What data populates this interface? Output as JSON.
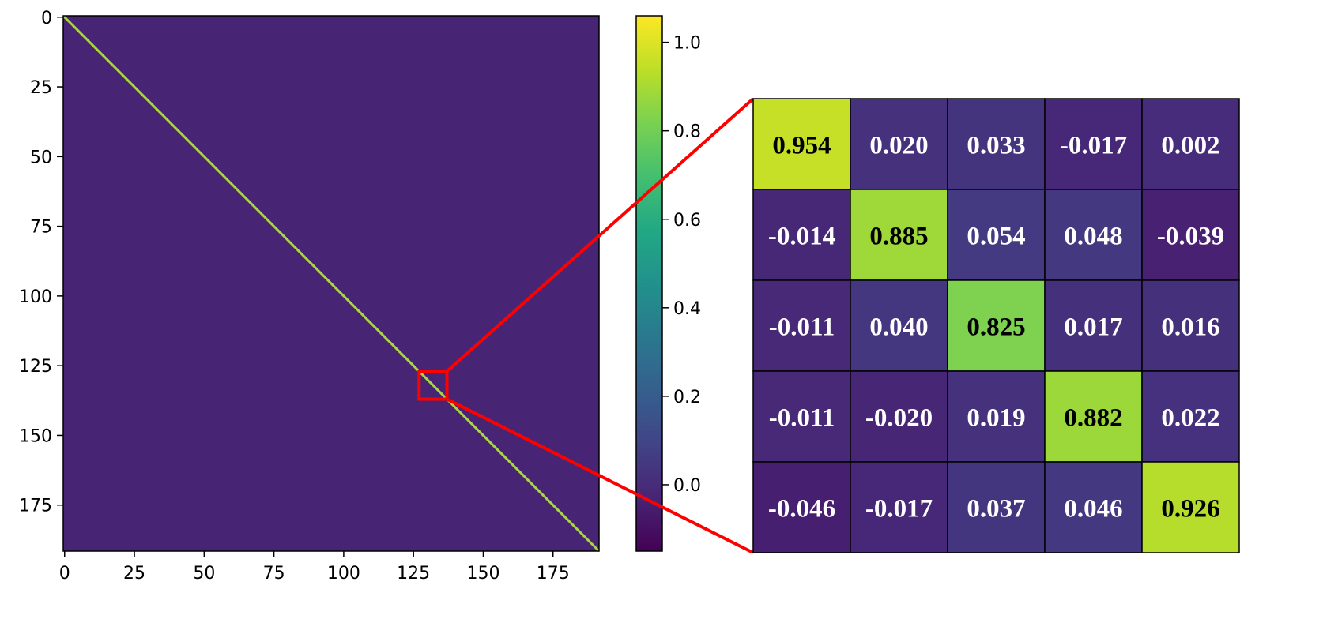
{
  "chart_data": [
    {
      "type": "heatmap",
      "title": "",
      "xlabel": "",
      "ylabel": "",
      "matrix_size": 192,
      "diagonal_value": 0.9,
      "off_diagonal_value": -0.03,
      "x_ticks": [
        0,
        25,
        50,
        75,
        100,
        125,
        150,
        175
      ],
      "y_ticks": [
        0,
        25,
        50,
        75,
        100,
        125,
        150,
        175
      ],
      "highlight_region": {
        "x_range": [
          127.5,
          137.5
        ],
        "y_range": [
          127.5,
          137.5
        ],
        "color": "#ff0000"
      },
      "colorscale": "viridis",
      "colorbar": {
        "range": [
          -0.15,
          1.06
        ],
        "ticks": [
          0.0,
          0.2,
          0.4,
          0.6,
          0.8,
          1.0
        ],
        "tick_labels": [
          "0.0",
          "0.2",
          "0.4",
          "0.6",
          "0.8",
          "1.0"
        ]
      }
    },
    {
      "type": "table",
      "title": "",
      "values": [
        [
          0.954,
          0.02,
          0.033,
          -0.017,
          0.002
        ],
        [
          -0.014,
          0.885,
          0.054,
          0.048,
          -0.039
        ],
        [
          -0.011,
          0.04,
          0.825,
          0.017,
          0.016
        ],
        [
          -0.011,
          -0.02,
          0.019,
          0.882,
          0.022
        ],
        [
          -0.046,
          -0.017,
          0.037,
          0.046,
          0.926
        ]
      ],
      "labels": [
        [
          "0.954",
          "0.020",
          "0.033",
          "-0.017",
          "0.002"
        ],
        [
          "-0.014",
          "0.885",
          "0.054",
          "0.048",
          "-0.039"
        ],
        [
          "-0.011",
          "0.040",
          "0.825",
          "0.017",
          "0.016"
        ],
        [
          "-0.011",
          "-0.020",
          "0.019",
          "0.882",
          "0.022"
        ],
        [
          "-0.046",
          "-0.017",
          "0.037",
          "0.046",
          "0.926"
        ]
      ]
    }
  ]
}
